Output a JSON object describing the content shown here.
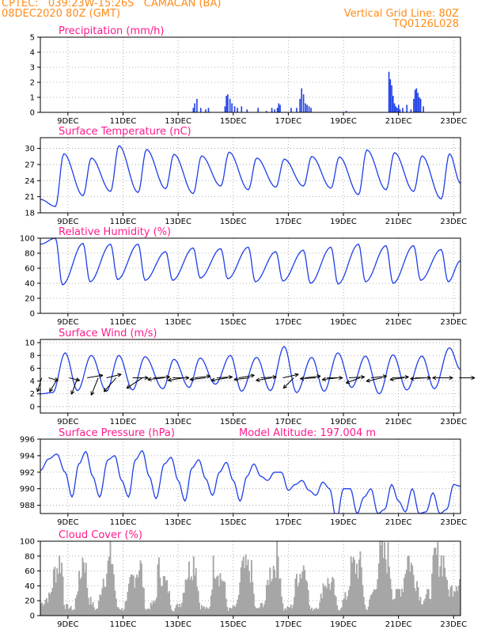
{
  "header": {
    "line1_left": "CPTEC:   039:23W-15:26S   CAMACAN (BA)",
    "line2_left": "08DEC2020 80Z (GMT)",
    "line2_right": "Vertical Grid Line: 80Z",
    "line3_right": "TQ0126L028"
  },
  "colors": {
    "header": "#ff8c1a",
    "title": "#ff1a8c",
    "line": "#1f3fe6",
    "bar": "#1f3fe6",
    "cloud": "#a6a6a6",
    "arrow": "#000000",
    "grid": "#9a9a9a"
  },
  "x_axis": {
    "dates": [
      "9DEC",
      "11DEC",
      "13DEC",
      "15DEC",
      "17DEC",
      "19DEC",
      "21DEC",
      "23DEC"
    ],
    "day_positions": [
      1,
      3,
      5,
      7,
      9,
      11,
      13,
      15
    ],
    "range": [
      0,
      15.25
    ]
  },
  "chart_data": [
    {
      "id": "precip",
      "type": "bar",
      "title": "Precipitation (mm/h)",
      "ylim": [
        0,
        5
      ],
      "yticks": [
        0,
        1,
        2,
        3,
        4,
        5
      ],
      "grid": true,
      "x_days": [
        5.55,
        5.6,
        5.68,
        5.82,
        6.0,
        6.1,
        6.7,
        6.75,
        6.8,
        6.88,
        6.95,
        7.05,
        7.15,
        7.3,
        7.5,
        7.9,
        8.2,
        8.4,
        8.5,
        8.6,
        8.65,
        8.7,
        9.1,
        9.3,
        9.42,
        9.48,
        9.55,
        9.62,
        9.68,
        9.75,
        9.82,
        11.1,
        12.65,
        12.7,
        12.75,
        12.8,
        12.85,
        12.9,
        12.95,
        13.0,
        13.05,
        13.15,
        13.3,
        13.45,
        13.55,
        13.6,
        13.65,
        13.7,
        13.75,
        13.8,
        13.9
      ],
      "values": [
        0.3,
        0.6,
        0.9,
        0.3,
        0.2,
        0.3,
        0.4,
        1.1,
        1.2,
        0.9,
        0.6,
        0.4,
        0.3,
        0.4,
        0.2,
        0.3,
        0.1,
        0.3,
        0.2,
        0.3,
        0.6,
        0.5,
        0.3,
        0.3,
        0.9,
        1.6,
        1.2,
        0.6,
        0.5,
        0.4,
        0.3,
        0.1,
        2.7,
        2.2,
        1.8,
        1.1,
        0.6,
        0.4,
        0.3,
        0.5,
        0.2,
        0.3,
        0.5,
        0.2,
        0.9,
        1.5,
        1.6,
        1.3,
        1.0,
        0.9,
        0.4
      ]
    },
    {
      "id": "temp",
      "type": "line",
      "title": "Surface Temperature (nC)",
      "ylim": [
        18,
        32
      ],
      "yticks": [
        18,
        21,
        24,
        27,
        30
      ],
      "grid": true,
      "series": [
        {
          "min_day": [
            0.55,
            1.55,
            2.55,
            3.55,
            4.55,
            5.55,
            6.55,
            7.55,
            8.55,
            9.55,
            10.55,
            11.55,
            12.55,
            13.55,
            14.55
          ],
          "max_day": [
            0.85,
            1.85,
            2.85,
            3.85,
            4.85,
            5.85,
            6.85,
            7.85,
            8.85,
            9.85,
            10.85,
            11.85,
            12.85,
            13.85,
            14.85
          ],
          "min": [
            19.2,
            21.2,
            22.0,
            21.8,
            22.5,
            21.6,
            23.0,
            22.3,
            22.8,
            23.0,
            22.6,
            21.4,
            22.3,
            22.0,
            20.6
          ],
          "max": [
            29.0,
            28.2,
            30.5,
            29.8,
            28.9,
            28.6,
            29.3,
            28.2,
            28.0,
            28.5,
            28.4,
            29.7,
            29.2,
            28.6,
            29.0
          ]
        }
      ]
    },
    {
      "id": "rh",
      "type": "line",
      "title": "Relative Humidity (%)",
      "ylim": [
        0,
        100
      ],
      "yticks": [
        0,
        20,
        40,
        60,
        80,
        100
      ],
      "grid": true,
      "series": [
        {
          "min_day": [
            0.8,
            1.8,
            2.8,
            3.8,
            4.8,
            5.8,
            6.8,
            7.8,
            8.8,
            9.8,
            10.8,
            11.8,
            12.8,
            13.8,
            14.8
          ],
          "max_day": [
            0.55,
            1.55,
            2.55,
            3.55,
            4.55,
            5.55,
            6.55,
            7.55,
            8.55,
            9.55,
            10.55,
            11.55,
            12.55,
            13.55,
            14.55
          ],
          "min": [
            38,
            42,
            45,
            44,
            44,
            47,
            46,
            42,
            43,
            40,
            39,
            42,
            40,
            44,
            42
          ],
          "max": [
            100,
            93,
            92,
            92,
            82,
            87,
            86,
            88,
            82,
            84,
            88,
            92,
            90,
            90,
            85
          ]
        }
      ]
    },
    {
      "id": "wind",
      "type": "line",
      "title": "Surface Wind (m/s)",
      "ylim": [
        -1,
        10.5
      ],
      "yticks": [
        0,
        2,
        4,
        6,
        8,
        10
      ],
      "grid": true,
      "series": [
        {
          "min_day": [
            0.45,
            1.35,
            2.4,
            3.35,
            4.45,
            5.4,
            6.35,
            7.3,
            8.35,
            9.3,
            10.3,
            11.3,
            12.3,
            13.3,
            14.3
          ],
          "max_day": [
            0.9,
            1.85,
            2.85,
            3.8,
            4.85,
            5.8,
            6.9,
            7.85,
            8.85,
            9.85,
            10.8,
            11.8,
            12.8,
            13.85,
            14.85
          ],
          "min": [
            2.2,
            2.5,
            2.4,
            2.6,
            2.8,
            3.0,
            3.5,
            2.4,
            2.5,
            2.2,
            2.4,
            3.0,
            2.0,
            2.6,
            2.8
          ],
          "max": [
            8.4,
            8.0,
            8.0,
            7.8,
            7.4,
            7.6,
            8.0,
            7.7,
            9.4,
            7.7,
            8.4,
            7.9,
            8.1,
            7.9,
            9.2
          ]
        }
      ],
      "vectors_day": [
        0.05,
        0.3,
        0.65,
        1.05,
        1.35,
        1.7,
        2.1,
        2.4,
        2.75,
        3.35,
        3.7,
        4.1,
        4.5,
        4.8,
        5.2,
        5.6,
        6.0,
        6.4,
        6.8,
        7.2,
        7.6,
        8.0,
        8.4,
        8.8,
        9.2,
        9.6,
        10.0,
        10.4,
        10.8,
        11.2,
        11.6,
        12.0,
        12.4,
        12.8,
        13.2,
        13.6,
        14.0,
        14.4,
        14.8,
        15.2
      ],
      "vectors_uv": [
        [
          -0.25,
          -0.8
        ],
        [
          0.55,
          -0.15
        ],
        [
          -0.5,
          -0.8
        ],
        [
          0.6,
          -0.15
        ],
        [
          -0.35,
          -0.95
        ],
        [
          0.9,
          0.15
        ],
        [
          -0.4,
          -1.0
        ],
        [
          0.85,
          0.2
        ],
        [
          -0.7,
          -0.8
        ],
        [
          0.9,
          0.0
        ],
        [
          -0.9,
          -0.6
        ],
        [
          0.95,
          0.05
        ],
        [
          -0.95,
          -0.1
        ],
        [
          0.95,
          0.0
        ],
        [
          -0.9,
          -0.15
        ],
        [
          0.9,
          0.1
        ],
        [
          -0.9,
          -0.1
        ],
        [
          0.9,
          0.05
        ],
        [
          -0.95,
          -0.15
        ],
        [
          0.9,
          0.15
        ],
        [
          -0.9,
          -0.1
        ],
        [
          0.9,
          0.05
        ],
        [
          -0.9,
          -0.15
        ],
        [
          0.9,
          0.2
        ],
        [
          -0.6,
          -0.6
        ],
        [
          0.9,
          0.1
        ],
        [
          -0.9,
          -0.05
        ],
        [
          0.9,
          0.0
        ],
        [
          -0.9,
          -0.1
        ],
        [
          0.9,
          0.05
        ],
        [
          -0.8,
          -0.3
        ],
        [
          0.9,
          0.1
        ],
        [
          -0.9,
          -0.2
        ],
        [
          0.9,
          0.05
        ],
        [
          -0.8,
          -0.1
        ],
        [
          0.9,
          0.0
        ],
        [
          -0.9,
          -0.05
        ],
        [
          0.9,
          0.0
        ],
        [
          -0.9,
          0.0
        ],
        [
          0.9,
          0.0
        ]
      ]
    },
    {
      "id": "pres",
      "type": "line",
      "title": "Surface Pressure (hPa)",
      "note": "Model Altitude: 197.004 m",
      "ylim": [
        987,
        996
      ],
      "yticks": [
        988,
        990,
        992,
        994,
        996
      ],
      "grid": true,
      "series": [
        {
          "day": [
            0.0,
            0.3,
            0.6,
            0.9,
            1.15,
            1.4,
            1.65,
            1.9,
            2.15,
            2.45,
            2.7,
            2.95,
            3.2,
            3.45,
            3.7,
            3.95,
            4.2,
            4.5,
            4.75,
            5.0,
            5.25,
            5.5,
            5.75,
            6.0,
            6.25,
            6.5,
            6.75,
            7.0,
            7.25,
            7.5,
            7.75,
            8.0,
            8.25,
            8.5,
            8.75,
            9.0,
            9.25,
            9.5,
            9.75,
            10.0,
            10.25,
            10.5,
            10.75,
            11.0,
            11.25,
            11.5,
            11.75,
            12.0,
            12.25,
            12.5,
            12.75,
            13.0,
            13.25,
            13.5,
            13.75,
            14.0,
            14.25,
            14.5,
            14.75,
            15.0,
            15.25
          ],
          "values": [
            992.2,
            993.6,
            994.2,
            992.0,
            989.0,
            993.0,
            994.5,
            991.5,
            989.0,
            993.5,
            994.0,
            991.0,
            989.0,
            993.5,
            994.6,
            991.5,
            988.8,
            993.0,
            993.8,
            991.0,
            988.5,
            992.5,
            993.5,
            991.2,
            989.2,
            992.0,
            993.2,
            991.0,
            988.5,
            991.5,
            993.0,
            991.5,
            991.0,
            992.0,
            992.0,
            989.8,
            990.5,
            991.0,
            989.8,
            989.2,
            990.8,
            990.0,
            986.2,
            990.0,
            990.0,
            987.0,
            989.0,
            990.0,
            987.0,
            987.5,
            990.5,
            988.5,
            987.2,
            990.0,
            987.0,
            987.2,
            989.5,
            987.0,
            987.5,
            990.5,
            990.3
          ]
        }
      ]
    },
    {
      "id": "cloud",
      "type": "bar",
      "title": "Cloud Cover (%)",
      "ylim": [
        0,
        100
      ],
      "yticks": [
        0,
        20,
        40,
        60,
        80,
        100
      ],
      "grid": true,
      "profile_day": [
        0.0,
        0.3,
        0.55,
        0.7,
        0.9,
        1.2,
        1.4,
        1.55,
        1.75,
        2.0,
        2.3,
        2.55,
        2.75,
        3.0,
        3.3,
        3.6,
        3.8,
        4.1,
        4.3,
        4.6,
        4.8,
        5.1,
        5.3,
        5.6,
        5.8,
        6.1,
        6.3,
        6.6,
        6.8,
        7.1,
        7.3,
        7.6,
        7.8,
        8.1,
        8.3,
        8.6,
        8.8,
        9.1,
        9.3,
        9.6,
        9.8,
        10.1,
        10.3,
        10.6,
        10.8,
        11.1,
        11.3,
        11.6,
        11.8,
        12.1,
        12.3,
        12.6,
        12.8,
        13.1,
        13.3,
        13.6,
        13.8,
        14.1,
        14.3,
        14.6,
        14.8,
        15.25
      ],
      "profile_values": [
        20,
        30,
        75,
        90,
        15,
        10,
        55,
        98,
        25,
        10,
        65,
        95,
        15,
        10,
        60,
        80,
        10,
        20,
        75,
        45,
        10,
        20,
        70,
        90,
        15,
        10,
        85,
        60,
        10,
        15,
        75,
        75,
        10,
        20,
        70,
        95,
        10,
        15,
        65,
        85,
        10,
        15,
        55,
        50,
        10,
        30,
        80,
        80,
        10,
        40,
        98,
        95,
        30,
        45,
        95,
        60,
        25,
        35,
        95,
        90,
        40,
        60
      ]
    }
  ]
}
